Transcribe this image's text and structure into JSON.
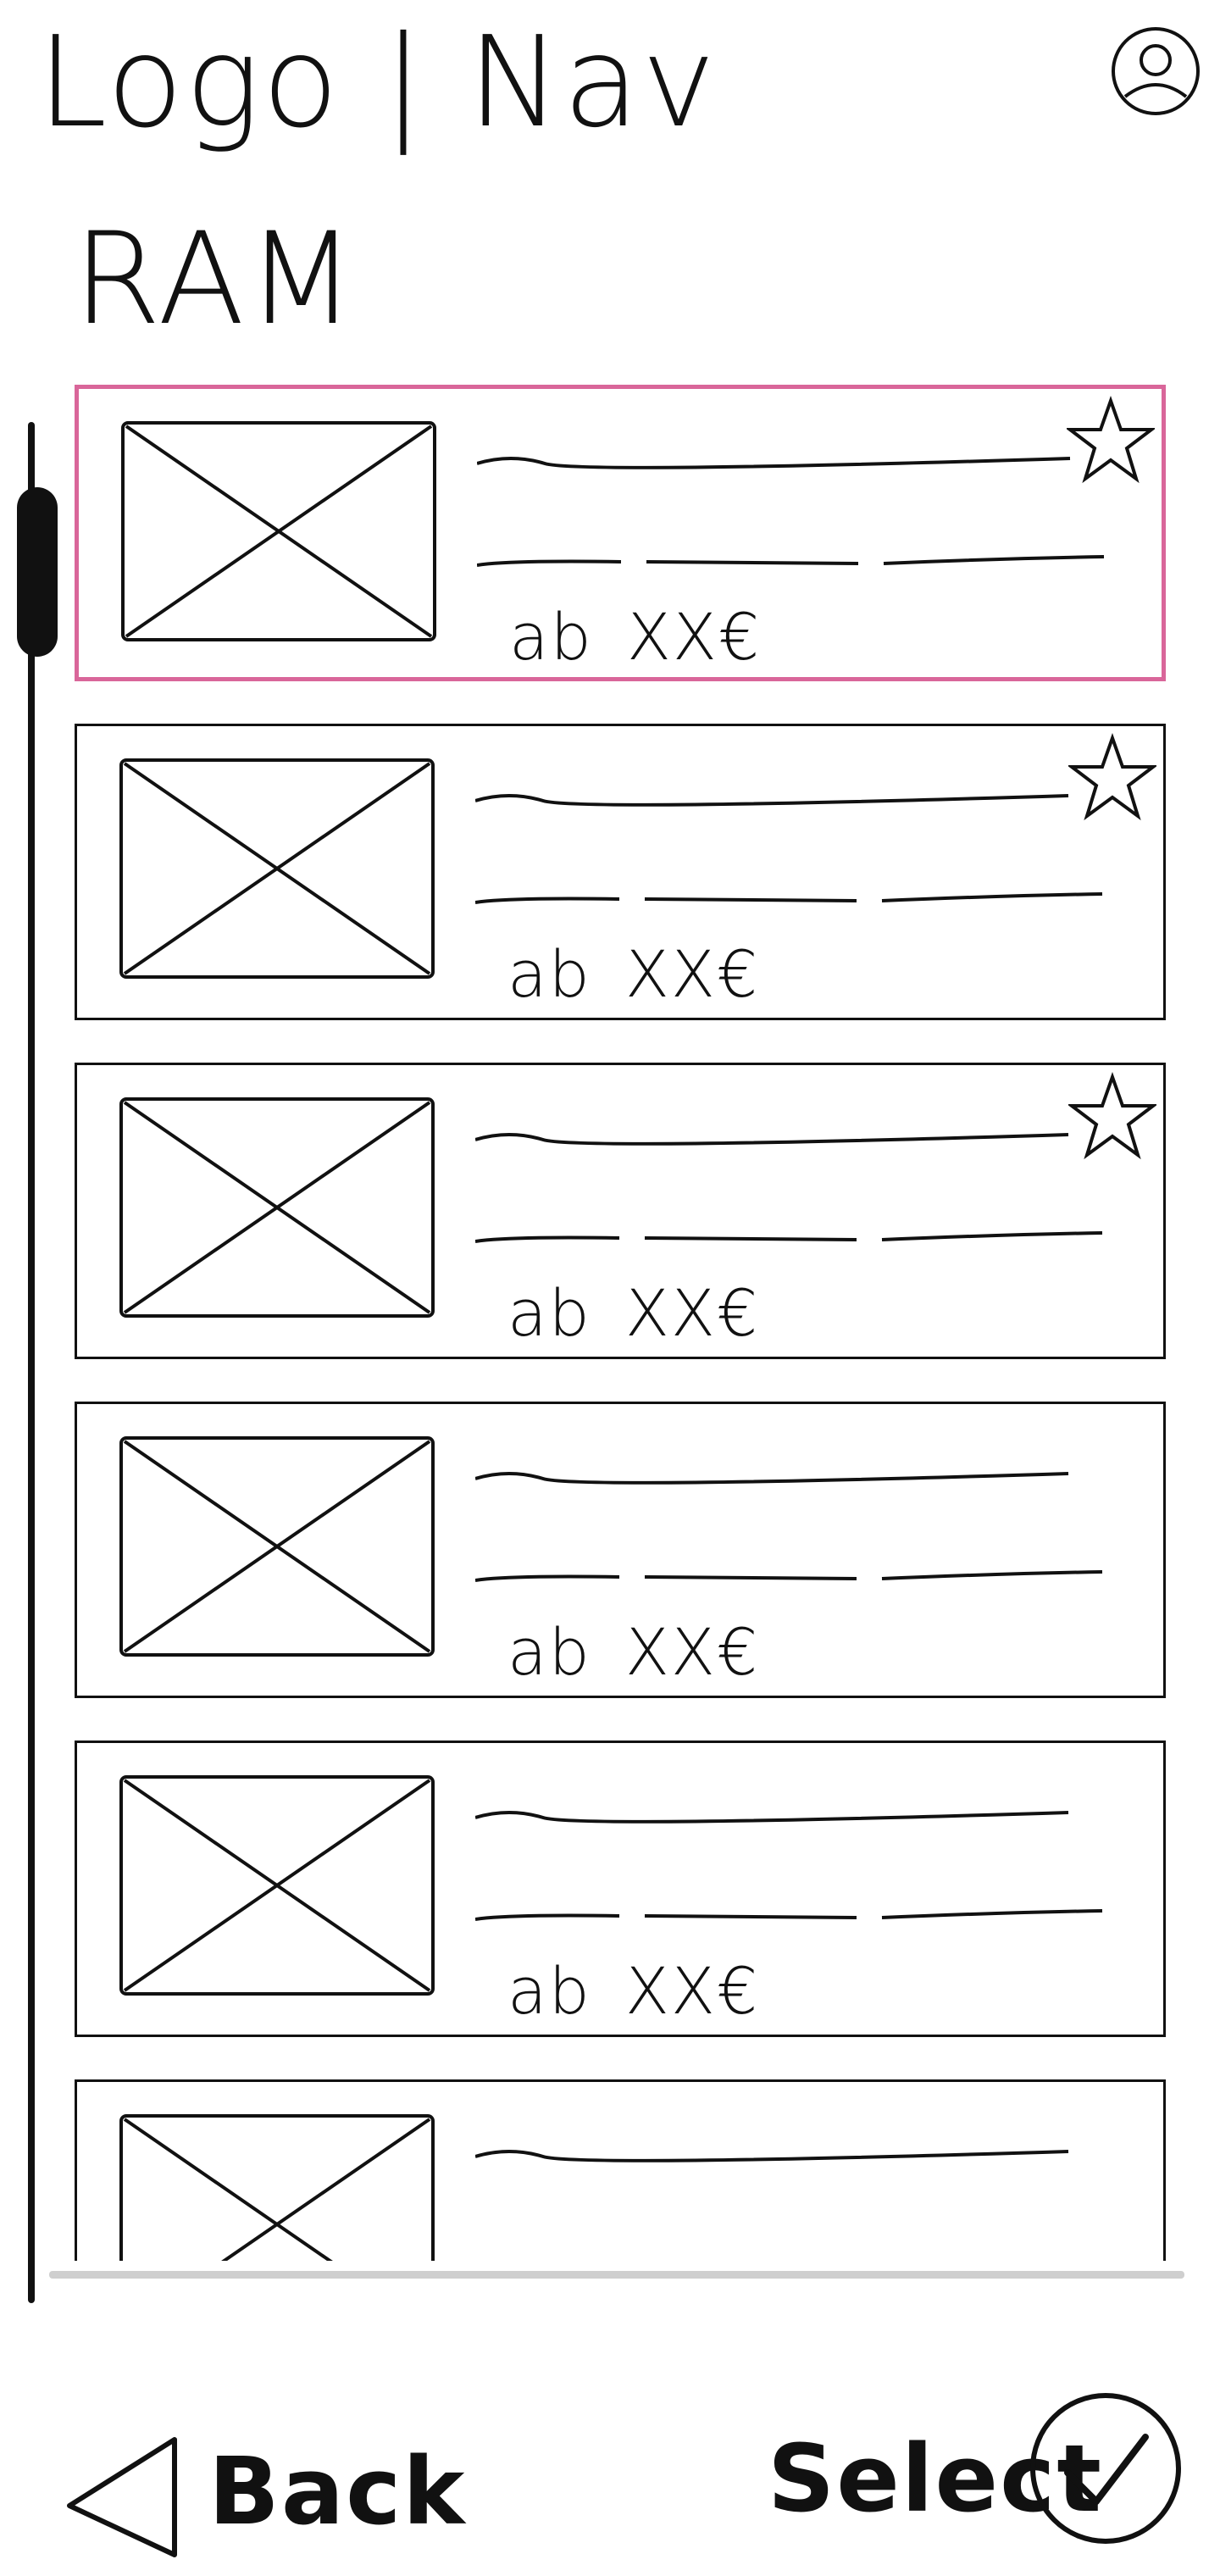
{
  "header": {
    "logo_nav_text": "Logo | Nav",
    "profile_icon": "user-circle-icon"
  },
  "page": {
    "title": "RAM"
  },
  "list": {
    "items": [
      {
        "meta": "ab",
        "price": "XX€",
        "favorite": true,
        "selected": true
      },
      {
        "meta": "ab",
        "price": "XX€",
        "favorite": true,
        "selected": false
      },
      {
        "meta": "ab",
        "price": "XX€",
        "favorite": true,
        "selected": false
      },
      {
        "meta": "ab",
        "price": "XX€",
        "favorite": false,
        "selected": false
      },
      {
        "meta": "ab",
        "price": "XX€",
        "favorite": false,
        "selected": false
      },
      {
        "meta": "",
        "price": "",
        "favorite": false,
        "selected": false
      }
    ]
  },
  "footer": {
    "back_label": "Back",
    "select_label": "Select",
    "back_icon": "triangle-left-icon",
    "select_icon": "check-circle-icon"
  },
  "colors": {
    "ink": "#111111",
    "selection": "#d9669a",
    "divider": "#cfcfcf"
  }
}
